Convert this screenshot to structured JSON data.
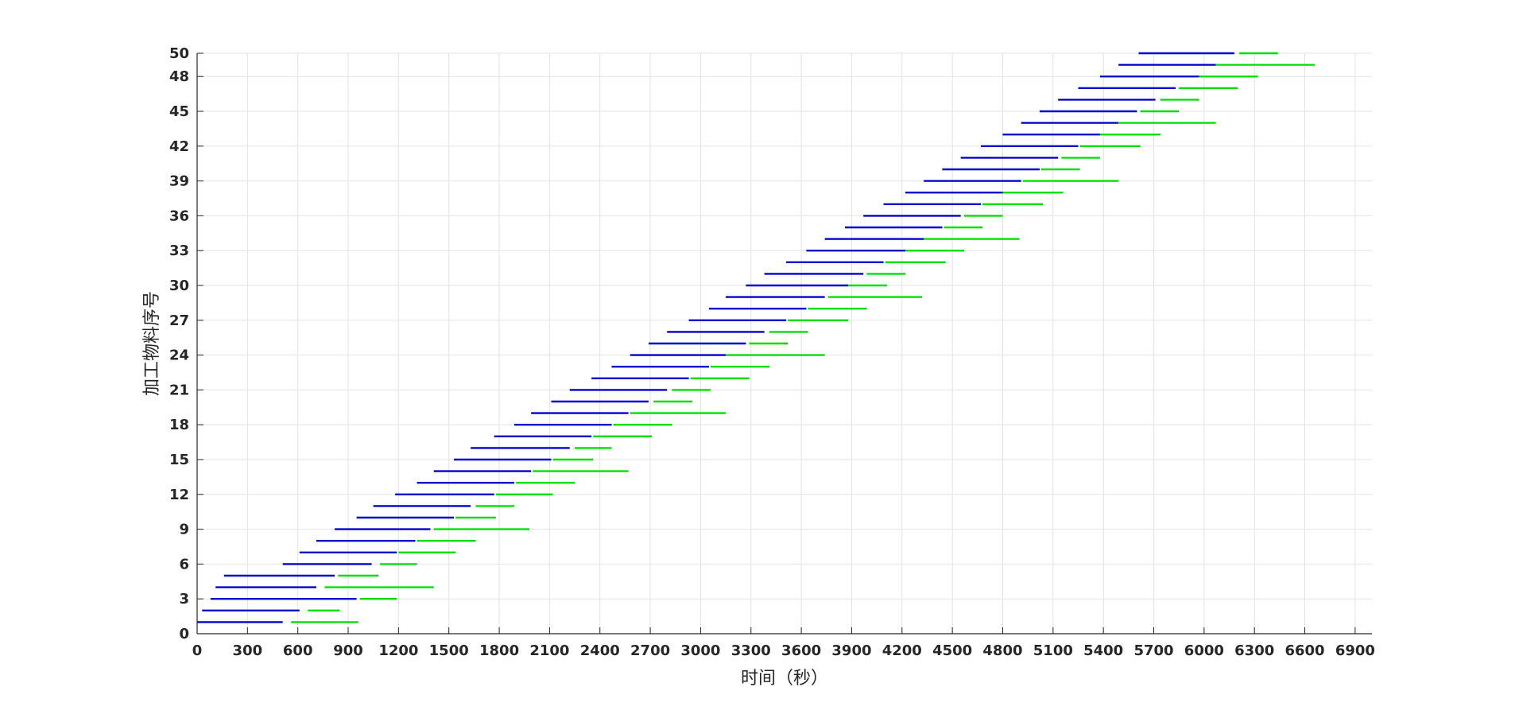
{
  "chart_data": {
    "type": "gantt",
    "xlabel": "时间（秒）",
    "ylabel": "加工物料序号",
    "xlim": [
      0,
      7000
    ],
    "ylim": [
      0,
      50
    ],
    "xticks": [
      0,
      300,
      600,
      900,
      1200,
      1500,
      1800,
      2100,
      2400,
      2700,
      3000,
      3300,
      3600,
      3900,
      4200,
      4500,
      4800,
      5100,
      5400,
      5700,
      6000,
      6300,
      6600,
      6900
    ],
    "yticks": [
      0,
      3,
      6,
      9,
      12,
      15,
      18,
      21,
      24,
      27,
      30,
      33,
      36,
      39,
      42,
      45,
      48,
      50
    ],
    "grid": true,
    "series": [
      {
        "color": "#0000CC"
      },
      {
        "color": "#00E000"
      }
    ],
    "tasks": [
      {
        "id": 1,
        "blue": [
          0,
          510
        ],
        "green": [
          560,
          960
        ]
      },
      {
        "id": 2,
        "blue": [
          30,
          610
        ],
        "green": [
          660,
          850
        ]
      },
      {
        "id": 3,
        "blue": [
          80,
          950
        ],
        "green": [
          970,
          1190
        ]
      },
      {
        "id": 4,
        "blue": [
          110,
          710
        ],
        "green": [
          760,
          1410
        ]
      },
      {
        "id": 5,
        "blue": [
          160,
          820
        ],
        "green": [
          840,
          1080
        ]
      },
      {
        "id": 6,
        "blue": [
          510,
          1040
        ],
        "green": [
          1090,
          1310
        ]
      },
      {
        "id": 7,
        "blue": [
          610,
          1190
        ],
        "green": [
          1200,
          1540
        ]
      },
      {
        "id": 8,
        "blue": [
          710,
          1300
        ],
        "green": [
          1310,
          1660
        ]
      },
      {
        "id": 9,
        "blue": [
          820,
          1390
        ],
        "green": [
          1410,
          1980
        ]
      },
      {
        "id": 10,
        "blue": [
          950,
          1530
        ],
        "green": [
          1540,
          1780
        ]
      },
      {
        "id": 11,
        "blue": [
          1050,
          1630
        ],
        "green": [
          1660,
          1890
        ]
      },
      {
        "id": 12,
        "blue": [
          1180,
          1770
        ],
        "green": [
          1780,
          2120
        ]
      },
      {
        "id": 13,
        "blue": [
          1310,
          1890
        ],
        "green": [
          1900,
          2250
        ]
      },
      {
        "id": 14,
        "blue": [
          1410,
          1990
        ],
        "green": [
          2000,
          2570
        ]
      },
      {
        "id": 15,
        "blue": [
          1530,
          2110
        ],
        "green": [
          2120,
          2360
        ]
      },
      {
        "id": 16,
        "blue": [
          1630,
          2220
        ],
        "green": [
          2250,
          2470
        ]
      },
      {
        "id": 17,
        "blue": [
          1770,
          2350
        ],
        "green": [
          2360,
          2710
        ]
      },
      {
        "id": 18,
        "blue": [
          1890,
          2470
        ],
        "green": [
          2480,
          2830
        ]
      },
      {
        "id": 19,
        "blue": [
          1990,
          2570
        ],
        "green": [
          2580,
          3150
        ]
      },
      {
        "id": 20,
        "blue": [
          2110,
          2690
        ],
        "green": [
          2720,
          2950
        ]
      },
      {
        "id": 21,
        "blue": [
          2220,
          2800
        ],
        "green": [
          2830,
          3060
        ]
      },
      {
        "id": 22,
        "blue": [
          2350,
          2930
        ],
        "green": [
          2940,
          3290
        ]
      },
      {
        "id": 23,
        "blue": [
          2470,
          3050
        ],
        "green": [
          3060,
          3410
        ]
      },
      {
        "id": 24,
        "blue": [
          2580,
          3150
        ],
        "green": [
          3150,
          3740
        ]
      },
      {
        "id": 25,
        "blue": [
          2690,
          3270
        ],
        "green": [
          3290,
          3520
        ]
      },
      {
        "id": 26,
        "blue": [
          2800,
          3380
        ],
        "green": [
          3410,
          3640
        ]
      },
      {
        "id": 27,
        "blue": [
          2930,
          3510
        ],
        "green": [
          3520,
          3880
        ]
      },
      {
        "id": 28,
        "blue": [
          3050,
          3630
        ],
        "green": [
          3640,
          3990
        ]
      },
      {
        "id": 29,
        "blue": [
          3150,
          3740
        ],
        "green": [
          3760,
          4320
        ]
      },
      {
        "id": 30,
        "blue": [
          3270,
          3880
        ],
        "green": [
          3880,
          4110
        ]
      },
      {
        "id": 31,
        "blue": [
          3380,
          3970
        ],
        "green": [
          3990,
          4220
        ]
      },
      {
        "id": 32,
        "blue": [
          3510,
          4090
        ],
        "green": [
          4100,
          4460
        ]
      },
      {
        "id": 33,
        "blue": [
          3630,
          4220
        ],
        "green": [
          4220,
          4570
        ]
      },
      {
        "id": 34,
        "blue": [
          3740,
          4330
        ],
        "green": [
          4330,
          4900
        ]
      },
      {
        "id": 35,
        "blue": [
          3860,
          4440
        ],
        "green": [
          4450,
          4680
        ]
      },
      {
        "id": 36,
        "blue": [
          3970,
          4550
        ],
        "green": [
          4570,
          4800
        ]
      },
      {
        "id": 37,
        "blue": [
          4090,
          4670
        ],
        "green": [
          4680,
          5040
        ]
      },
      {
        "id": 38,
        "blue": [
          4220,
          4800
        ],
        "green": [
          4800,
          5160
        ]
      },
      {
        "id": 39,
        "blue": [
          4330,
          4910
        ],
        "green": [
          4920,
          5490
        ]
      },
      {
        "id": 40,
        "blue": [
          4440,
          5020
        ],
        "green": [
          5030,
          5260
        ]
      },
      {
        "id": 41,
        "blue": [
          4550,
          5130
        ],
        "green": [
          5150,
          5380
        ]
      },
      {
        "id": 42,
        "blue": [
          4670,
          5250
        ],
        "green": [
          5260,
          5620
        ]
      },
      {
        "id": 43,
        "blue": [
          4800,
          5380
        ],
        "green": [
          5380,
          5740
        ]
      },
      {
        "id": 44,
        "blue": [
          4910,
          5490
        ],
        "green": [
          5490,
          6070
        ]
      },
      {
        "id": 45,
        "blue": [
          5020,
          5600
        ],
        "green": [
          5620,
          5850
        ]
      },
      {
        "id": 46,
        "blue": [
          5130,
          5710
        ],
        "green": [
          5740,
          5970
        ]
      },
      {
        "id": 47,
        "blue": [
          5250,
          5830
        ],
        "green": [
          5850,
          6200
        ]
      },
      {
        "id": 48,
        "blue": [
          5380,
          5970
        ],
        "green": [
          5970,
          6320
        ]
      },
      {
        "id": 49,
        "blue": [
          5490,
          6070
        ],
        "green": [
          6070,
          6660
        ]
      },
      {
        "id": 50,
        "blue": [
          5610,
          6180
        ],
        "green": [
          6210,
          6440
        ]
      }
    ]
  }
}
